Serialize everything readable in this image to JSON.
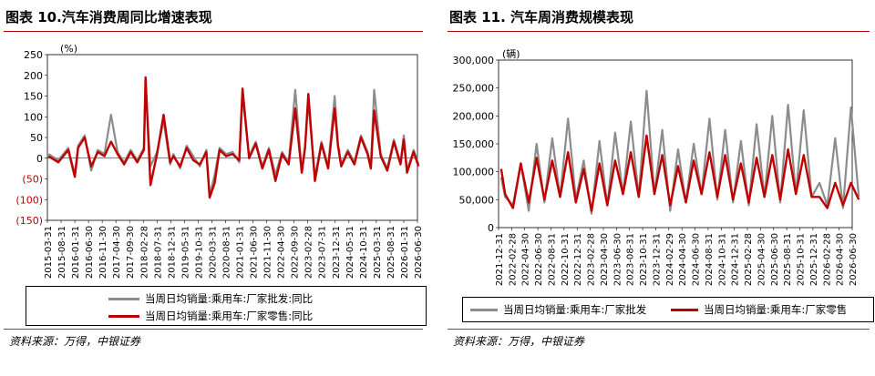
{
  "left_panel": {
    "title": "图表 10.汽车消费周同比增速表现",
    "source": "资料来源：万得，中银证券",
    "unit_label": "(%)",
    "legend": [
      "当周日均销量:乘用车:厂家批发:同比",
      "当周日均销量:乘用车:厂家零售:同比"
    ]
  },
  "right_panel": {
    "title": "图表 11. 汽车周消费规模表现",
    "source": "资料来源：万得，中银证券",
    "unit_label": "(辆)",
    "legend": [
      "当周日均销量:乘用车:厂家批发",
      "当周日均销量:乘用车:厂家零售"
    ]
  },
  "colors": {
    "wholesale": "#8c8c8c",
    "retail": "#c00000",
    "negative_tick": "#c00000",
    "title_rule": "#b00000"
  },
  "chart_data": [
    {
      "type": "line",
      "title": "图表 10.汽车消费周同比增速表现",
      "ylabel": "(%)",
      "ylim": [
        -150,
        250
      ],
      "yticks": [
        "250",
        "200",
        "150",
        "100",
        "50",
        "0",
        "(50)",
        "(100)",
        "(150)"
      ],
      "ytick_values": [
        250,
        200,
        150,
        100,
        50,
        0,
        -50,
        -100,
        -150
      ],
      "categories": [
        "2015-03-31",
        "2015-08-31",
        "2016-01-31",
        "2016-06-30",
        "2016-11-30",
        "2017-04-30",
        "2017-09-30",
        "2018-02-28",
        "2018-07-31",
        "2018-12-31",
        "2019-05-31",
        "2019-10-31",
        "2020-03-31",
        "2020-08-31",
        "2021-01-31",
        "2021-06-30",
        "2021-11-30",
        "2022-04-30",
        "2022-09-30",
        "2023-02-28",
        "2023-07-31",
        "2023-12-31",
        "2024-05-31",
        "2024-10-31",
        "2025-03-31",
        "2025-08-31",
        "2026-01-31",
        "2026-06-30"
      ],
      "grid": false,
      "legend_position": "bottom",
      "series": [
        {
          "name": "当周日均销量:乘用车:厂家批发:同比",
          "x": [
            2015.2,
            2015.5,
            2015.8,
            2016.0,
            2016.1,
            2016.3,
            2016.5,
            2016.7,
            2016.9,
            2017.1,
            2017.3,
            2017.5,
            2017.7,
            2017.9,
            2018.1,
            2018.15,
            2018.3,
            2018.5,
            2018.7,
            2018.9,
            2019.0,
            2019.2,
            2019.4,
            2019.6,
            2019.8,
            2020.0,
            2020.1,
            2020.25,
            2020.4,
            2020.6,
            2020.8,
            2021.0,
            2021.1,
            2021.3,
            2021.5,
            2021.7,
            2021.9,
            2022.1,
            2022.3,
            2022.5,
            2022.7,
            2022.9,
            2023.0,
            2023.1,
            2023.3,
            2023.5,
            2023.7,
            2023.9,
            2024.0,
            2024.1,
            2024.3,
            2024.5,
            2024.7,
            2024.9,
            2025.0,
            2025.1,
            2025.3,
            2025.5,
            2025.7,
            2025.9,
            2026.0,
            2026.1,
            2026.3,
            2026.45
          ],
          "y": [
            10,
            -5,
            25,
            -40,
            30,
            55,
            -30,
            20,
            10,
            105,
            15,
            -10,
            20,
            -5,
            25,
            170,
            -20,
            15,
            90,
            -15,
            10,
            -25,
            30,
            5,
            -20,
            20,
            -90,
            -40,
            25,
            10,
            15,
            -10,
            150,
            5,
            40,
            -20,
            25,
            -40,
            15,
            -10,
            165,
            -30,
            30,
            135,
            -45,
            40,
            -20,
            150,
            35,
            -15,
            20,
            -10,
            55,
            15,
            -20,
            165,
            10,
            -25,
            45,
            -10,
            55,
            -30,
            20,
            -15
          ]
        },
        {
          "name": "当周日均销量:乘用车:厂家零售:同比",
          "x": [
            2015.2,
            2015.5,
            2015.8,
            2016.0,
            2016.1,
            2016.3,
            2016.5,
            2016.7,
            2016.9,
            2017.1,
            2017.3,
            2017.5,
            2017.7,
            2017.9,
            2018.1,
            2018.15,
            2018.3,
            2018.5,
            2018.7,
            2018.9,
            2019.0,
            2019.2,
            2019.4,
            2019.6,
            2019.8,
            2020.0,
            2020.1,
            2020.25,
            2020.4,
            2020.6,
            2020.8,
            2021.0,
            2021.1,
            2021.3,
            2021.5,
            2021.7,
            2021.9,
            2022.1,
            2022.3,
            2022.5,
            2022.7,
            2022.9,
            2023.0,
            2023.1,
            2023.3,
            2023.5,
            2023.7,
            2023.9,
            2024.0,
            2024.1,
            2024.3,
            2024.5,
            2024.7,
            2024.9,
            2025.0,
            2025.1,
            2025.3,
            2025.5,
            2025.7,
            2025.9,
            2026.0,
            2026.1,
            2026.3,
            2026.45
          ],
          "y": [
            5,
            -10,
            20,
            -45,
            25,
            50,
            -20,
            15,
            5,
            40,
            10,
            -15,
            15,
            -10,
            20,
            195,
            -65,
            10,
            105,
            -10,
            5,
            -20,
            25,
            -5,
            -15,
            15,
            -95,
            -60,
            20,
            5,
            10,
            -5,
            168,
            0,
            35,
            -25,
            20,
            -55,
            10,
            -15,
            120,
            -35,
            25,
            155,
            -55,
            35,
            -25,
            120,
            30,
            -20,
            15,
            -15,
            50,
            10,
            -25,
            115,
            5,
            -30,
            40,
            -15,
            45,
            -35,
            15,
            -20
          ]
        }
      ]
    },
    {
      "type": "line",
      "title": "图表 11. 汽车周消费规模表现",
      "ylabel": "(辆)",
      "ylim": [
        0,
        300000
      ],
      "yticks": [
        "300,000",
        "250,000",
        "200,000",
        "150,000",
        "100,000",
        "50,000",
        "0"
      ],
      "ytick_values": [
        300000,
        250000,
        200000,
        150000,
        100000,
        50000,
        0
      ],
      "categories": [
        "2021-12-31",
        "2022-02-28",
        "2022-04-30",
        "2022-06-30",
        "2022-08-31",
        "2022-10-31",
        "2022-12-31",
        "2023-02-28",
        "2023-04-30",
        "2023-06-30",
        "2023-08-31",
        "2023-10-31",
        "2023-12-31",
        "2024-02-29",
        "2024-04-30",
        "2024-06-30",
        "2024-08-31",
        "2024-10-31",
        "2024-12-31",
        "2025-02-28",
        "2025-04-30",
        "2025-06-30",
        "2025-08-31",
        "2025-10-31",
        "2025-12-31",
        "2026-02-28",
        "2026-04-30",
        "2026-06-30"
      ],
      "grid": false,
      "legend_position": "bottom",
      "series": [
        {
          "name": "当周日均销量:乘用车:厂家批发",
          "x": [
            2021.95,
            2022.0,
            2022.1,
            2022.2,
            2022.3,
            2022.4,
            2022.5,
            2022.6,
            2022.7,
            2022.8,
            2022.9,
            2023.0,
            2023.1,
            2023.2,
            2023.3,
            2023.4,
            2023.5,
            2023.6,
            2023.7,
            2023.8,
            2023.9,
            2024.0,
            2024.1,
            2024.2,
            2024.3,
            2024.4,
            2024.5,
            2024.6,
            2024.7,
            2024.8,
            2024.9,
            2025.0,
            2025.1,
            2025.2,
            2025.3,
            2025.4,
            2025.5,
            2025.6,
            2025.7,
            2025.8,
            2025.9,
            2026.0,
            2026.1,
            2026.2,
            2026.3,
            2026.4,
            2026.5
          ],
          "y": [
            90000,
            55000,
            40000,
            115000,
            30000,
            150000,
            45000,
            160000,
            55000,
            195000,
            50000,
            120000,
            25000,
            155000,
            40000,
            170000,
            60000,
            190000,
            55000,
            245000,
            60000,
            175000,
            30000,
            140000,
            45000,
            150000,
            60000,
            195000,
            50000,
            175000,
            45000,
            155000,
            40000,
            185000,
            55000,
            200000,
            45000,
            220000,
            60000,
            210000,
            55000,
            80000,
            40000,
            160000,
            35000,
            215000,
            55000
          ]
        },
        {
          "name": "当周日均销量:乘用车:厂家零售",
          "x": [
            2021.95,
            2022.0,
            2022.1,
            2022.2,
            2022.3,
            2022.4,
            2022.5,
            2022.6,
            2022.7,
            2022.8,
            2022.9,
            2023.0,
            2023.1,
            2023.2,
            2023.3,
            2023.4,
            2023.5,
            2023.6,
            2023.7,
            2023.8,
            2023.9,
            2024.0,
            2024.1,
            2024.2,
            2024.3,
            2024.4,
            2024.5,
            2024.6,
            2024.7,
            2024.8,
            2024.9,
            2025.0,
            2025.1,
            2025.2,
            2025.3,
            2025.4,
            2025.5,
            2025.6,
            2025.7,
            2025.8,
            2025.9,
            2026.0,
            2026.1,
            2026.2,
            2026.3,
            2026.4,
            2026.5
          ],
          "y": [
            105000,
            60000,
            35000,
            115000,
            45000,
            125000,
            50000,
            120000,
            55000,
            135000,
            45000,
            105000,
            30000,
            115000,
            40000,
            120000,
            60000,
            135000,
            55000,
            165000,
            60000,
            130000,
            40000,
            110000,
            45000,
            120000,
            60000,
            135000,
            55000,
            130000,
            50000,
            115000,
            45000,
            125000,
            55000,
            130000,
            50000,
            140000,
            60000,
            130000,
            55000,
            55000,
            35000,
            80000,
            40000,
            80000,
            50000
          ]
        }
      ]
    }
  ]
}
